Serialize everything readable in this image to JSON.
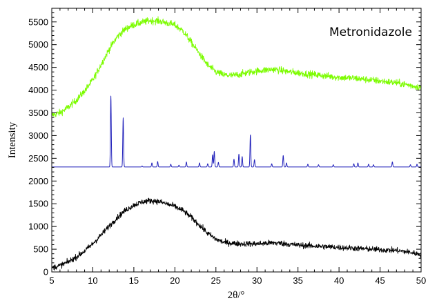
{
  "chart_data": {
    "type": "line",
    "xlabel": "2θ/°",
    "ylabel": "Intensity",
    "xlim": [
      5,
      50
    ],
    "ylim": [
      0,
      5800
    ],
    "x_ticks": [
      5,
      10,
      15,
      20,
      25,
      30,
      35,
      40,
      45,
      50
    ],
    "y_ticks": [
      0,
      500,
      1000,
      1500,
      2000,
      2500,
      3000,
      3500,
      4000,
      4500,
      5000,
      5500
    ],
    "annotation": "Metronidazole",
    "grid": false,
    "series": [
      {
        "color": "#7cfc00",
        "style": "noisy",
        "noise": 55,
        "points": [
          [
            5,
            3450
          ],
          [
            6,
            3500
          ],
          [
            7,
            3620
          ],
          [
            8,
            3780
          ],
          [
            9,
            3980
          ],
          [
            10,
            4220
          ],
          [
            11,
            4560
          ],
          [
            12,
            4900
          ],
          [
            13,
            5180
          ],
          [
            14,
            5350
          ],
          [
            15,
            5440
          ],
          [
            16,
            5490
          ],
          [
            17,
            5530
          ],
          [
            18,
            5520
          ],
          [
            19,
            5480
          ],
          [
            20,
            5430
          ],
          [
            21,
            5300
          ],
          [
            22,
            5050
          ],
          [
            23,
            4800
          ],
          [
            24,
            4550
          ],
          [
            25,
            4400
          ],
          [
            26,
            4330
          ],
          [
            27,
            4320
          ],
          [
            28,
            4350
          ],
          [
            29,
            4390
          ],
          [
            30,
            4420
          ],
          [
            31,
            4440
          ],
          [
            32,
            4460
          ],
          [
            33,
            4430
          ],
          [
            34,
            4400
          ],
          [
            35,
            4380
          ],
          [
            36,
            4360
          ],
          [
            37,
            4340
          ],
          [
            38,
            4320
          ],
          [
            39,
            4300
          ],
          [
            40,
            4280
          ],
          [
            41,
            4270
          ],
          [
            42,
            4260
          ],
          [
            43,
            4240
          ],
          [
            44,
            4220
          ],
          [
            45,
            4200
          ],
          [
            46,
            4180
          ],
          [
            47,
            4160
          ],
          [
            48,
            4130
          ],
          [
            49,
            4090
          ],
          [
            50,
            4060
          ]
        ]
      },
      {
        "color": "#2222bb",
        "style": "peaks",
        "baseline": 2310,
        "peaks": [
          [
            12.2,
            3870
          ],
          [
            13.7,
            3390
          ],
          [
            16.0,
            2330
          ],
          [
            17.2,
            2400
          ],
          [
            17.9,
            2430
          ],
          [
            19.5,
            2370
          ],
          [
            20.5,
            2350
          ],
          [
            21.4,
            2420
          ],
          [
            23.0,
            2400
          ],
          [
            24.0,
            2380
          ],
          [
            24.6,
            2580
          ],
          [
            24.8,
            2650
          ],
          [
            25.3,
            2410
          ],
          [
            27.2,
            2480
          ],
          [
            27.8,
            2590
          ],
          [
            28.2,
            2540
          ],
          [
            29.2,
            3020
          ],
          [
            29.7,
            2470
          ],
          [
            31.8,
            2380
          ],
          [
            33.2,
            2560
          ],
          [
            33.6,
            2400
          ],
          [
            36.2,
            2370
          ],
          [
            37.5,
            2360
          ],
          [
            39.3,
            2360
          ],
          [
            41.8,
            2380
          ],
          [
            42.3,
            2400
          ],
          [
            43.6,
            2370
          ],
          [
            44.2,
            2360
          ],
          [
            46.5,
            2420
          ],
          [
            48.7,
            2360
          ],
          [
            49.5,
            2370
          ]
        ]
      },
      {
        "color": "#000000",
        "style": "noisy",
        "noise": 45,
        "points": [
          [
            5,
            90
          ],
          [
            6,
            140
          ],
          [
            7,
            220
          ],
          [
            8,
            330
          ],
          [
            9,
            460
          ],
          [
            10,
            620
          ],
          [
            11,
            810
          ],
          [
            12,
            1010
          ],
          [
            13,
            1200
          ],
          [
            14,
            1360
          ],
          [
            15,
            1470
          ],
          [
            16,
            1540
          ],
          [
            17,
            1570
          ],
          [
            18,
            1550
          ],
          [
            19,
            1500
          ],
          [
            20,
            1440
          ],
          [
            21,
            1350
          ],
          [
            22,
            1200
          ],
          [
            23,
            1030
          ],
          [
            24,
            850
          ],
          [
            25,
            720
          ],
          [
            26,
            650
          ],
          [
            27,
            630
          ],
          [
            28,
            620
          ],
          [
            29,
            620
          ],
          [
            30,
            620
          ],
          [
            31,
            630
          ],
          [
            32,
            640
          ],
          [
            33,
            630
          ],
          [
            34,
            610
          ],
          [
            35,
            590
          ],
          [
            36,
            580
          ],
          [
            37,
            570
          ],
          [
            38,
            560
          ],
          [
            39,
            550
          ],
          [
            40,
            540
          ],
          [
            41,
            530
          ],
          [
            42,
            520
          ],
          [
            43,
            510
          ],
          [
            44,
            500
          ],
          [
            45,
            490
          ],
          [
            46,
            480
          ],
          [
            47,
            470
          ],
          [
            48,
            450
          ],
          [
            49,
            420
          ],
          [
            50,
            380
          ]
        ]
      }
    ]
  }
}
